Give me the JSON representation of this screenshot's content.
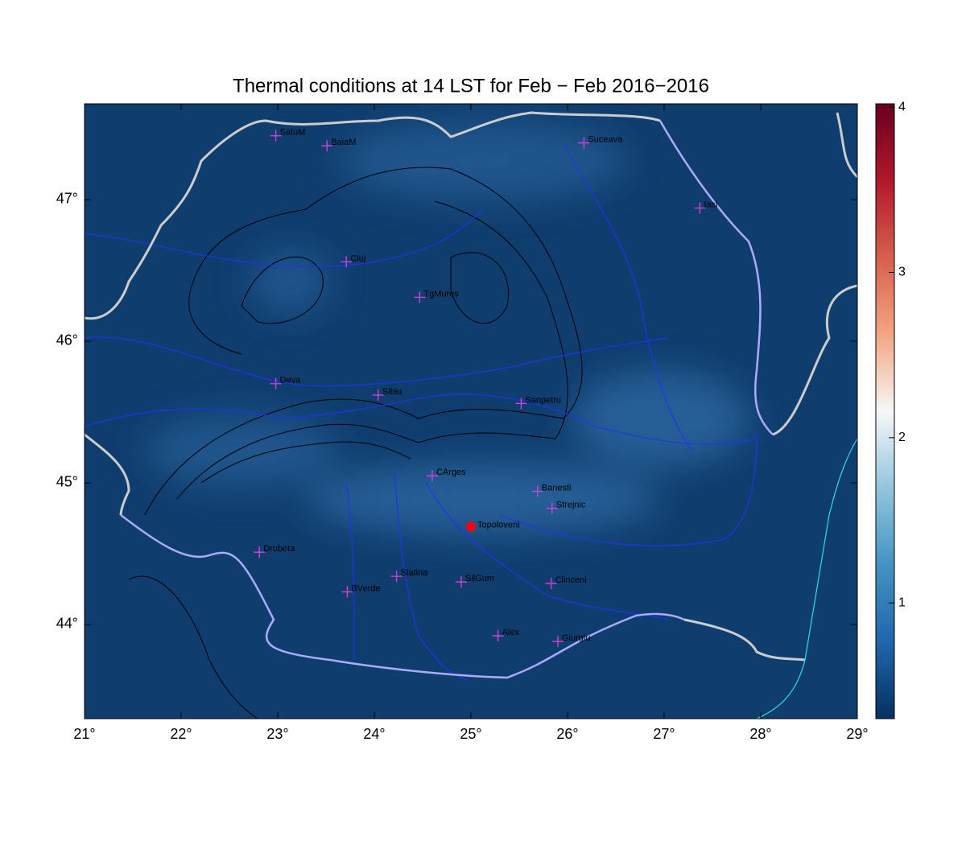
{
  "chart_data": {
    "type": "map",
    "title": "Thermal conditions at 14 LST for Feb − Feb  2016−2016",
    "xlim": [
      21,
      29
    ],
    "ylim": [
      43.335,
      47.676
    ],
    "xticks": [
      {
        "value": 21,
        "label": "21°"
      },
      {
        "value": 22,
        "label": "22°"
      },
      {
        "value": 23,
        "label": "23°"
      },
      {
        "value": 24,
        "label": "24°"
      },
      {
        "value": 25,
        "label": "25°"
      },
      {
        "value": 26,
        "label": "26°"
      },
      {
        "value": 27,
        "label": "27°"
      },
      {
        "value": 28,
        "label": "28°"
      },
      {
        "value": 29,
        "label": "29°"
      }
    ],
    "yticks": [
      {
        "value": 44,
        "label": "44°"
      },
      {
        "value": 45,
        "label": "45°"
      },
      {
        "value": 46,
        "label": "46°"
      },
      {
        "value": 47,
        "label": "47°"
      }
    ],
    "colorbar": {
      "clim": [
        0.3,
        4.02
      ],
      "ticks": [
        1,
        2,
        3,
        4
      ],
      "colors": [
        "#053061",
        "#2166ac",
        "#4393c3",
        "#92c5de",
        "#f7f7f7",
        "#f4a582",
        "#d6604d",
        "#b2182b",
        "#67001f"
      ]
    },
    "marker_color": "#e040e0",
    "highlight_color": "#ff0000",
    "stations": [
      {
        "name": "SatuM",
        "lon": 22.98,
        "lat": 47.45
      },
      {
        "name": "BaiaM",
        "lon": 23.51,
        "lat": 47.38
      },
      {
        "name": "Suceava",
        "lon": 26.17,
        "lat": 47.4
      },
      {
        "name": "Iasi",
        "lon": 27.37,
        "lat": 46.94
      },
      {
        "name": "Cluj",
        "lon": 23.71,
        "lat": 46.56
      },
      {
        "name": "TgMures",
        "lon": 24.47,
        "lat": 46.31
      },
      {
        "name": "Deva",
        "lon": 22.98,
        "lat": 45.7
      },
      {
        "name": "Sibiu",
        "lon": 24.04,
        "lat": 45.62
      },
      {
        "name": "Sanpetru",
        "lon": 25.52,
        "lat": 45.56
      },
      {
        "name": "CArges",
        "lon": 24.6,
        "lat": 45.05
      },
      {
        "name": "Banesti",
        "lon": 25.69,
        "lat": 44.94
      },
      {
        "name": "Strejnic",
        "lon": 25.84,
        "lat": 44.82
      },
      {
        "name": "Drobeta",
        "lon": 22.81,
        "lat": 44.51
      },
      {
        "name": "Slatina",
        "lon": 24.23,
        "lat": 44.34
      },
      {
        "name": "SilGum",
        "lon": 24.9,
        "lat": 44.3
      },
      {
        "name": "BVerde",
        "lon": 23.72,
        "lat": 44.23
      },
      {
        "name": "Clinceni",
        "lon": 25.83,
        "lat": 44.29
      },
      {
        "name": "Alex",
        "lon": 25.28,
        "lat": 43.92
      },
      {
        "name": "Giurgiu",
        "lon": 25.9,
        "lat": 43.88
      }
    ],
    "highlight": {
      "name": "Topoloveni",
      "lon": 25.0,
      "lat": 44.69
    }
  }
}
